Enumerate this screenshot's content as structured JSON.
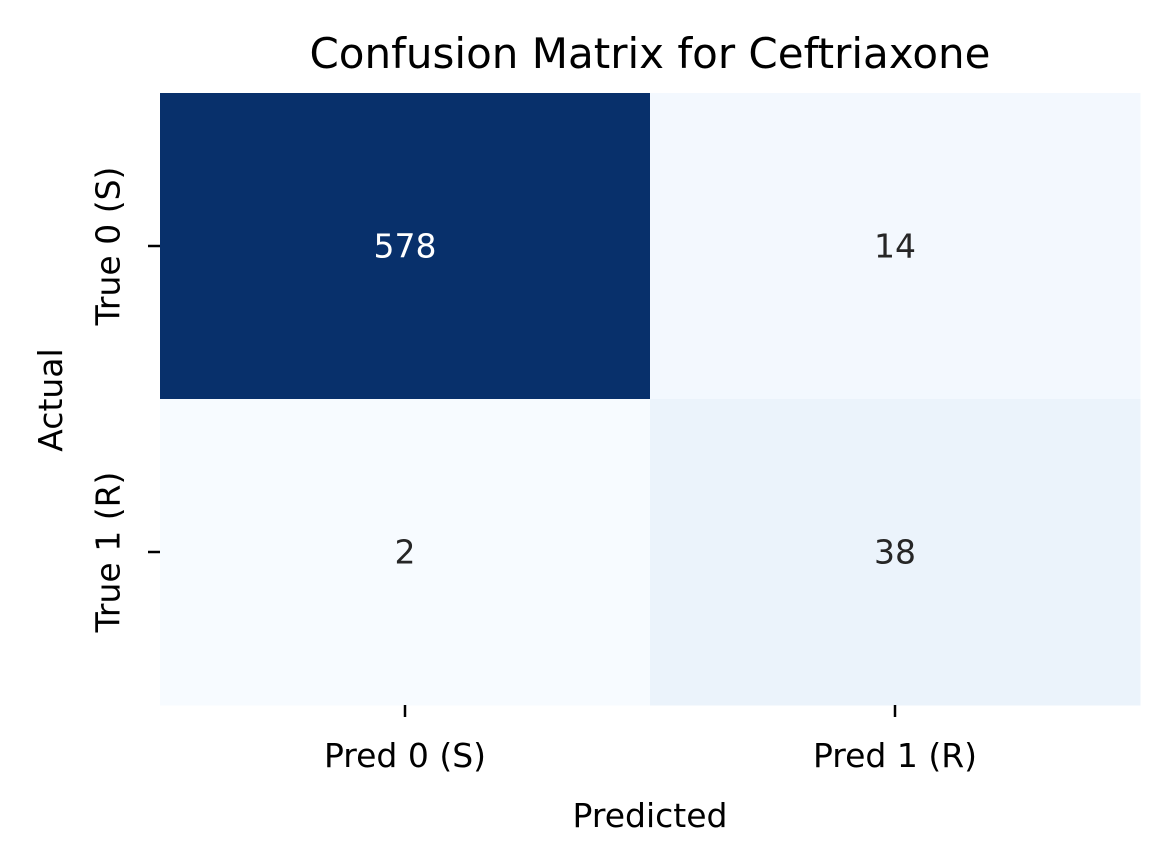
{
  "chart_data": {
    "type": "heatmap",
    "title": "Confusion Matrix for Ceftriaxone",
    "xlabel": "Predicted",
    "ylabel": "Actual",
    "x_categories": [
      "Pred 0 (S)",
      "Pred 1 (R)"
    ],
    "y_categories": [
      "True 0 (S)",
      "True 1 (R)"
    ],
    "values": [
      [
        578,
        14
      ],
      [
        2,
        38
      ]
    ],
    "colormap": "Blues",
    "colorbar": false,
    "annotations": true,
    "colors": {
      "low": "#f7fbff",
      "mid_low": "#eaf2fb",
      "high": "#08306b",
      "text_dark": "#262626",
      "text_light": "#ffffff"
    }
  }
}
